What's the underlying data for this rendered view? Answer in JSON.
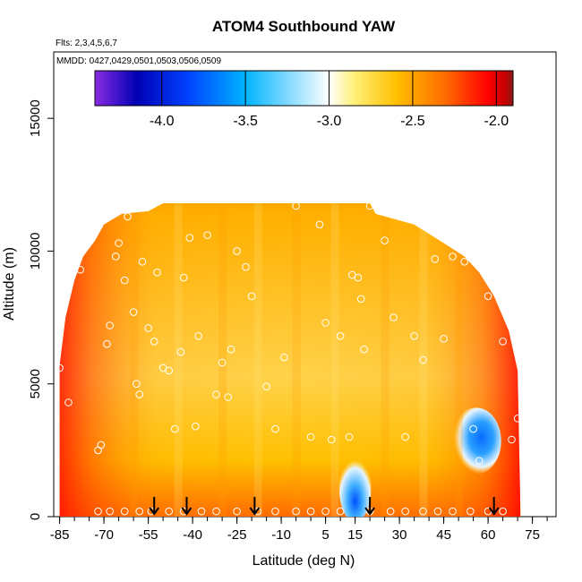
{
  "chart_data": {
    "type": "heatmap",
    "title": "ATOM4 Southbound YAW",
    "flights_label": "Flts: 2,3,4,5,6,7",
    "dates_label": "MMDD: 0427,0429,0501,0503,0506,0509",
    "xlabel": "Latitude (deg N)",
    "ylabel": "Altitude (m)",
    "xlim": [
      -87,
      83
    ],
    "ylim": [
      0,
      17500
    ],
    "x_ticks": [
      -85,
      -70,
      -55,
      -40,
      -25,
      -10,
      5,
      15,
      30,
      45,
      60,
      75
    ],
    "x_minor_step": 5,
    "y_ticks": [
      0,
      5000,
      10000,
      15000
    ],
    "colorbar": {
      "range": [
        -4.4,
        -1.9
      ],
      "ticks": [
        -4.0,
        -3.5,
        -3.0,
        -2.5,
        -2.0
      ],
      "tick_labels": [
        "-4.0",
        "-3.5",
        "-3.0",
        "-2.5",
        "-2.0"
      ],
      "colors": [
        "#8a2be2",
        "#0000b4",
        "#0040ff",
        "#00b4ff",
        "#ffffff",
        "#fff07a",
        "#ffc000",
        "#ff6a00",
        "#ff0000",
        "#c80000",
        "#8b1a1a"
      ],
      "stops": [
        -4.4,
        -4.15,
        -3.85,
        -3.5,
        -3.0,
        -2.85,
        -2.6,
        -2.3,
        -2.05,
        -1.95,
        -1.9
      ]
    },
    "coverage_top_m": [
      {
        "lat": -85,
        "alt": 5700
      },
      {
        "lat": -83,
        "alt": 7500
      },
      {
        "lat": -80,
        "alt": 8900
      },
      {
        "lat": -77,
        "alt": 9800
      },
      {
        "lat": -73,
        "alt": 10400
      },
      {
        "lat": -70,
        "alt": 11000
      },
      {
        "lat": -64,
        "alt": 11400
      },
      {
        "lat": -55,
        "alt": 11500
      },
      {
        "lat": -50,
        "alt": 11800
      },
      {
        "lat": 20,
        "alt": 11800
      },
      {
        "lat": 22,
        "alt": 11400
      },
      {
        "lat": 35,
        "alt": 11000
      },
      {
        "lat": 45,
        "alt": 10300
      },
      {
        "lat": 52,
        "alt": 9800
      },
      {
        "lat": 57,
        "alt": 9200
      },
      {
        "lat": 62,
        "alt": 8300
      },
      {
        "lat": 67,
        "alt": 7000
      },
      {
        "lat": 70,
        "alt": 5500
      },
      {
        "lat": 71,
        "alt": 0
      }
    ],
    "blue_features": [
      {
        "name": "low-altitude-minimum",
        "lat_range": [
          12,
          18
        ],
        "alt_range": [
          0,
          2200
        ],
        "min_value": -4.2
      },
      {
        "name": "mid-altitude-minimum",
        "lat_range": [
          50,
          62
        ],
        "alt_range": [
          1800,
          3900
        ],
        "min_value": -4.0
      }
    ],
    "sample_points": [
      [
        -85,
        5600
      ],
      [
        -82,
        4300
      ],
      [
        -80,
        9500
      ],
      [
        -78,
        9300
      ],
      [
        -73,
        10800
      ],
      [
        -72,
        2500
      ],
      [
        -71,
        2700
      ],
      [
        -69,
        6500
      ],
      [
        -68,
        7200
      ],
      [
        -66,
        9800
      ],
      [
        -63,
        8900
      ],
      [
        -62,
        11300
      ],
      [
        -65,
        10300
      ],
      [
        -60,
        7700
      ],
      [
        -59,
        5000
      ],
      [
        -58,
        4600
      ],
      [
        -57,
        9600
      ],
      [
        -55,
        7100
      ],
      [
        -53,
        6600
      ],
      [
        -52,
        9200
      ],
      [
        -50,
        5600
      ],
      [
        -48,
        5500
      ],
      [
        -46,
        3300
      ],
      [
        -44,
        6200
      ],
      [
        -43,
        9000
      ],
      [
        -41,
        10500
      ],
      [
        -39,
        3400
      ],
      [
        -38,
        6800
      ],
      [
        -35,
        10600
      ],
      [
        -32,
        4600
      ],
      [
        -30,
        5800
      ],
      [
        -28,
        4500
      ],
      [
        -27,
        6300
      ],
      [
        -25,
        10000
      ],
      [
        -22,
        9400
      ],
      [
        -20,
        8300
      ],
      [
        -15,
        4900
      ],
      [
        -12,
        3300
      ],
      [
        -9,
        6000
      ],
      [
        -5,
        11700
      ],
      [
        0,
        3000
      ],
      [
        3,
        11000
      ],
      [
        5,
        7300
      ],
      [
        7,
        2900
      ],
      [
        10,
        6800
      ],
      [
        13,
        3000
      ],
      [
        14,
        9100
      ],
      [
        16,
        9000
      ],
      [
        17,
        8200
      ],
      [
        18,
        6300
      ],
      [
        20,
        11700
      ],
      [
        25,
        10400
      ],
      [
        28,
        7500
      ],
      [
        32,
        3000
      ],
      [
        35,
        6800
      ],
      [
        38,
        5900
      ],
      [
        42,
        9700
      ],
      [
        45,
        6700
      ],
      [
        48,
        9800
      ],
      [
        52,
        9600
      ],
      [
        55,
        3300
      ],
      [
        57,
        2100
      ],
      [
        60,
        8300
      ],
      [
        65,
        6600
      ],
      [
        68,
        2900
      ],
      [
        70,
        3700
      ]
    ],
    "ground_points_lat": [
      -72,
      -68,
      -63,
      -58,
      -54,
      -48,
      -43,
      -37,
      -32,
      -25,
      -18,
      -12,
      -5,
      0,
      5,
      10,
      20,
      27,
      32,
      38,
      43,
      48,
      54,
      60,
      65
    ],
    "flight_arrows_lat": [
      -53,
      -42,
      -19,
      20,
      62
    ]
  }
}
